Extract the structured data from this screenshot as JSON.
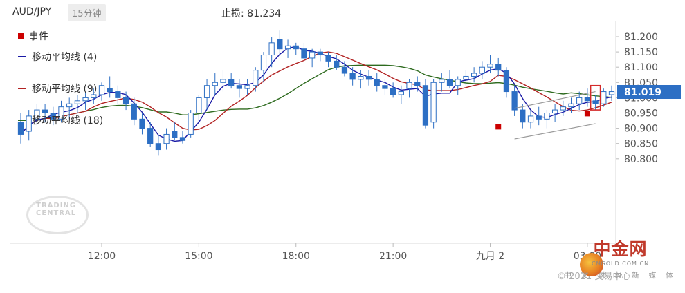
{
  "header": {
    "symbol": "AUD/JPY",
    "timeframe": "15分钟",
    "stop_loss": "止损: 81.234"
  },
  "legend": [
    {
      "label": "事件",
      "color": "#cc0000",
      "kind": "square"
    },
    {
      "label": "移动平均线 (4)",
      "color": "#1a1aa6",
      "kind": "line"
    },
    {
      "label": "移动平均线 (9)",
      "color": "#b22222",
      "kind": "line"
    },
    {
      "label": "移动平均线 (18)",
      "color": "#2e6b1f",
      "kind": "line"
    }
  ],
  "watermark": {
    "line1": "TRADING",
    "line2": "CENTRAL"
  },
  "copyright": "© 2021 交易中心",
  "brand": {
    "name": "中金网",
    "sub": "CNGOLD.COM.CN",
    "ribbon": "中 文 财 经 新 媒 体"
  },
  "chart_data": {
    "type": "candlestick",
    "title": "AUD/JPY",
    "timeframe": "15分钟",
    "ylim": [
      80.805,
      81.22
    ],
    "y_ticks": [
      "81.200",
      "81.150",
      "81.100",
      "81.050",
      "81.000",
      "80.950",
      "80.900",
      "80.850",
      "80.800"
    ],
    "x_ticks": [
      {
        "label": "12:00",
        "bar": 10
      },
      {
        "label": "15:00",
        "bar": 22
      },
      {
        "label": "18:00",
        "bar": 34
      },
      {
        "label": "21:00",
        "bar": 46
      },
      {
        "label": "九月 2",
        "bar": 58
      },
      {
        "label": "03:00",
        "bar": 70
      }
    ],
    "last_price": "81.019",
    "stop_loss": 81.234,
    "candles": [
      [
        80.92,
        80.95,
        80.85,
        80.88
      ],
      [
        80.89,
        80.96,
        80.86,
        80.94
      ],
      [
        80.93,
        80.98,
        80.91,
        80.96
      ],
      [
        80.96,
        80.98,
        80.92,
        80.95
      ],
      [
        80.95,
        80.97,
        80.91,
        80.93
      ],
      [
        80.93,
        80.99,
        80.92,
        80.97
      ],
      [
        80.97,
        81.0,
        80.93,
        80.98
      ],
      [
        80.98,
        81.01,
        80.95,
        80.99
      ],
      [
        80.99,
        81.02,
        80.96,
        81.0
      ],
      [
        81.0,
        81.03,
        80.98,
        81.01
      ],
      [
        81.01,
        81.05,
        80.99,
        81.04
      ],
      [
        81.03,
        81.07,
        81.0,
        81.02
      ],
      [
        81.02,
        81.04,
        80.98,
        81.0
      ],
      [
        81.0,
        81.02,
        80.96,
        80.98
      ],
      [
        80.98,
        81.0,
        80.91,
        80.93
      ],
      [
        80.93,
        80.95,
        80.88,
        80.9
      ],
      [
        80.9,
        80.92,
        80.84,
        80.85
      ],
      [
        80.85,
        80.88,
        80.81,
        80.83
      ],
      [
        80.85,
        80.9,
        80.83,
        80.88
      ],
      [
        80.89,
        80.92,
        80.86,
        80.87
      ],
      [
        80.87,
        80.89,
        80.85,
        80.86
      ],
      [
        80.88,
        80.96,
        80.87,
        80.95
      ],
      [
        80.95,
        81.01,
        80.92,
        81.0
      ],
      [
        81.0,
        81.06,
        80.96,
        81.04
      ],
      [
        81.04,
        81.08,
        81.01,
        81.05
      ],
      [
        81.05,
        81.09,
        81.02,
        81.06
      ],
      [
        81.06,
        81.08,
        81.03,
        81.04
      ],
      [
        81.04,
        81.06,
        81.0,
        81.03
      ],
      [
        81.03,
        81.06,
        81.01,
        81.04
      ],
      [
        81.04,
        81.1,
        81.02,
        81.09
      ],
      [
        81.09,
        81.15,
        81.05,
        81.14
      ],
      [
        81.14,
        81.2,
        81.1,
        81.18
      ],
      [
        81.19,
        81.22,
        81.14,
        81.16
      ],
      [
        81.16,
        81.19,
        81.13,
        81.17
      ],
      [
        81.17,
        81.18,
        81.14,
        81.16
      ],
      [
        81.16,
        81.18,
        81.12,
        81.13
      ],
      [
        81.13,
        81.16,
        81.1,
        81.15
      ],
      [
        81.15,
        81.16,
        81.12,
        81.14
      ],
      [
        81.14,
        81.15,
        81.1,
        81.12
      ],
      [
        81.12,
        81.14,
        81.09,
        81.1
      ],
      [
        81.1,
        81.12,
        81.07,
        81.08
      ],
      [
        81.08,
        81.1,
        81.04,
        81.06
      ],
      [
        81.06,
        81.09,
        81.03,
        81.07
      ],
      [
        81.07,
        81.09,
        81.04,
        81.06
      ],
      [
        81.06,
        81.08,
        81.02,
        81.04
      ],
      [
        81.04,
        81.06,
        81.01,
        81.03
      ],
      [
        81.03,
        81.05,
        81.0,
        81.01
      ],
      [
        81.01,
        81.04,
        80.98,
        81.02
      ],
      [
        81.03,
        81.06,
        81.0,
        81.05
      ],
      [
        81.05,
        81.07,
        81.02,
        81.04
      ],
      [
        81.04,
        81.06,
        80.9,
        80.91
      ],
      [
        80.92,
        81.06,
        80.9,
        81.05
      ],
      [
        81.05,
        81.08,
        81.02,
        81.06
      ],
      [
        81.06,
        81.09,
        81.03,
        81.04
      ],
      [
        81.04,
        81.07,
        81.01,
        81.06
      ],
      [
        81.06,
        81.09,
        81.04,
        81.07
      ],
      [
        81.07,
        81.1,
        81.05,
        81.08
      ],
      [
        81.08,
        81.12,
        81.06,
        81.1
      ],
      [
        81.1,
        81.14,
        81.08,
        81.11
      ],
      [
        81.11,
        81.13,
        81.07,
        81.09
      ],
      [
        81.09,
        81.1,
        81.0,
        81.02
      ],
      [
        81.02,
        81.04,
        80.94,
        80.96
      ],
      [
        80.96,
        80.98,
        80.9,
        80.92
      ],
      [
        80.92,
        80.96,
        80.9,
        80.94
      ],
      [
        80.94,
        80.97,
        80.91,
        80.93
      ],
      [
        80.93,
        80.96,
        80.9,
        80.95
      ],
      [
        80.95,
        80.98,
        80.92,
        80.96
      ],
      [
        80.96,
        80.99,
        80.94,
        80.97
      ],
      [
        80.97,
        81.0,
        80.95,
        80.98
      ],
      [
        80.98,
        81.02,
        80.96,
        81.0
      ],
      [
        81.0,
        81.03,
        80.97,
        80.99
      ],
      [
        80.99,
        81.01,
        80.96,
        80.98
      ],
      [
        80.98,
        81.03,
        80.97,
        81.02
      ],
      [
        81.01,
        81.04,
        80.99,
        81.02
      ]
    ],
    "events": [
      {
        "bar": 59,
        "value": 80.905
      },
      {
        "bar": 70,
        "value": 80.948
      }
    ]
  }
}
